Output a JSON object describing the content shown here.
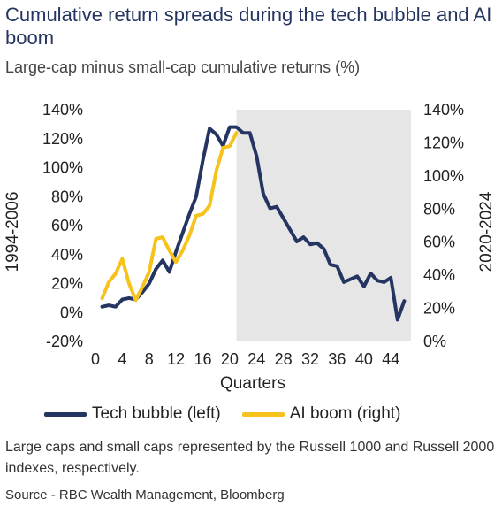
{
  "header": {
    "title": "Cumulative return spreads during the tech bubble and AI boom",
    "subtitle": "Large-cap minus small-cap cumulative returns (%)"
  },
  "footnote": "Large caps and small caps represented by the Russell 1000 and Russell 2000 indexes, respectively.",
  "source": "Source - RBC Wealth Management, Bloomberg",
  "colors": {
    "tech": "#253561",
    "ai": "#F7C21B",
    "shade": "#E6E6E6"
  },
  "chart_data": {
    "type": "line",
    "xlabel": "Quarters",
    "ylabel_left": "1994-2006",
    "ylabel_right": "2020-2024",
    "x_ticks": [
      0,
      4,
      8,
      12,
      16,
      20,
      24,
      28,
      32,
      36,
      40,
      44
    ],
    "xlim": [
      0,
      47
    ],
    "ylim_left": [
      -20,
      140
    ],
    "ylim_right": [
      0,
      140
    ],
    "y_ticks_left": [
      "-20%",
      "0%",
      "20%",
      "40%",
      "60%",
      "80%",
      "100%",
      "120%",
      "140%"
    ],
    "y_ticks_right": [
      "0%",
      "20%",
      "40%",
      "60%",
      "80%",
      "100%",
      "120%",
      "140%"
    ],
    "shaded_region": [
      21,
      47
    ],
    "legend": {
      "position": "bottom",
      "tech_label": "Tech bubble (left)",
      "ai_label": "AI boom (right)"
    },
    "series": [
      {
        "name": "Tech bubble (left)",
        "axis": "left",
        "x": [
          1,
          2,
          3,
          4,
          5,
          6,
          7,
          8,
          9,
          10,
          11,
          12,
          13,
          14,
          15,
          16,
          17,
          18,
          19,
          20,
          21,
          22,
          23,
          24,
          25,
          26,
          27,
          28,
          29,
          30,
          31,
          32,
          33,
          34,
          35,
          36,
          37,
          38,
          39,
          40,
          41,
          42,
          43,
          44,
          45,
          46
        ],
        "values": [
          4,
          5,
          4,
          9,
          10,
          9,
          14,
          20,
          30,
          36,
          28,
          42,
          55,
          68,
          80,
          105,
          127,
          123,
          115,
          128,
          128,
          124,
          124,
          108,
          82,
          72,
          73,
          65,
          57,
          49,
          52,
          47,
          48,
          44,
          33,
          32,
          21,
          23,
          25,
          18,
          27,
          22,
          21,
          24,
          -5,
          8
        ]
      },
      {
        "name": "AI boom (right)",
        "axis": "right",
        "x": [
          1,
          2,
          3,
          4,
          5,
          6,
          7,
          8,
          9,
          10,
          11,
          12,
          13,
          14,
          15,
          16,
          17,
          18,
          19,
          20,
          21
        ],
        "values": [
          26,
          36,
          41,
          50,
          35,
          25,
          33,
          42,
          62,
          63,
          55,
          48,
          55,
          64,
          76,
          77,
          82,
          103,
          117,
          118,
          126
        ]
      }
    ]
  }
}
